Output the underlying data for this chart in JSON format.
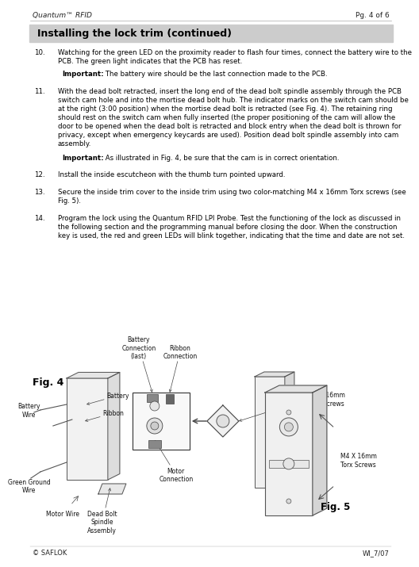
{
  "header_left": "Quantum™ RFID",
  "header_right": "Pg. 4 of 6",
  "section_title": "Installing the lock trim (continued)",
  "footer_left": "© SAFLOK",
  "footer_right": "WI_7/07",
  "bg_color": "#ffffff",
  "section_bg": "#cccccc",
  "body_text_size": 6.2,
  "ann_text_size": 5.5,
  "fig_label_size": 8.5,
  "items": [
    {
      "num": "10.",
      "text": "Watching for the green LED on the proximity reader to flash four times, connect the battery wire to the\nPCB. The green light indicates that the PCB has reset.",
      "important": "Important:",
      "important_text": "The battery wire should be the last connection made to the PCB."
    },
    {
      "num": "11.",
      "text": "With the dead bolt retracted, insert the long end of the dead bolt spindle assembly through the PCB\nswitch cam hole and into the mortise dead bolt hub. The indicator marks on the switch cam should be\nat the right (3:00 position) when the mortise dead bolt is retracted (see Fig. 4). The retaining ring\nshould rest on the switch cam when fully inserted (the proper positioning of the cam will allow the\ndoor to be opened when the dead bolt is retracted and block entry when the dead bolt is thrown for\nprivacy, except when emergency keycards are used). Position dead bolt spindle assembly into cam\nassembly.",
      "important": "Important:",
      "important_text": "As illustrated in Fig. 4, be sure that the cam is in correct orientation."
    },
    {
      "num": "12.",
      "text": "Install the inside escutcheon with the thumb turn pointed upward."
    },
    {
      "num": "13.",
      "text": "Secure the inside trim cover to the inside trim using two color-matching M4 x 16mm Torx screws (see\nFig. 5)."
    },
    {
      "num": "14.",
      "text": "Program the lock using the Quantum RFID LPI Probe. Test the functioning of the lock as discussed in\nthe following section and the programming manual before closing the door. When the construction\nkey is used, the red and green LEDs will blink together, indicating that the time and date are not set."
    }
  ],
  "fig4_label": "Fig. 4",
  "fig5_label": "Fig. 5"
}
